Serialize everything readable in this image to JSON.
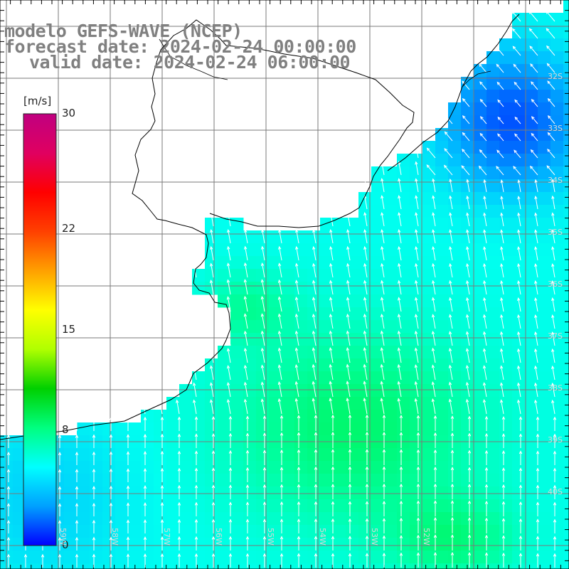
{
  "title": {
    "model": "modelo GEFS-WAVE (NCEP)",
    "forecast": "forecast date: 2024-02-24 00:00:00",
    "valid": "valid date: 2024-02-24 06:00:00"
  },
  "colorbar": {
    "unit": "[m/s]",
    "ticks": [
      {
        "value": 30,
        "label": "30"
      },
      {
        "value": 22,
        "label": "22"
      },
      {
        "value": 15,
        "label": "15"
      },
      {
        "value": 8,
        "label": "8"
      },
      {
        "value": 0,
        "label": "0"
      }
    ],
    "colors": [
      "#0000ff",
      "#00a0ff",
      "#00ffff",
      "#00ff80",
      "#00d000",
      "#b0ff00",
      "#ffff00",
      "#ffa000",
      "#ff4000",
      "#ff0000",
      "#e00060",
      "#c00080"
    ]
  },
  "latitude_labels": [
    "32S",
    "33S",
    "34S",
    "35S",
    "36S",
    "37S",
    "38S",
    "39S",
    "40S"
  ],
  "longitude_labels": [
    "59W",
    "58W",
    "57W",
    "56W",
    "55W",
    "54W",
    "53W",
    "52W"
  ],
  "colors": {
    "land": "#ffffff",
    "grid": "#7a7a7a",
    "coastline": "#000000",
    "arrows": "#ffffff",
    "title": "#808080"
  }
}
